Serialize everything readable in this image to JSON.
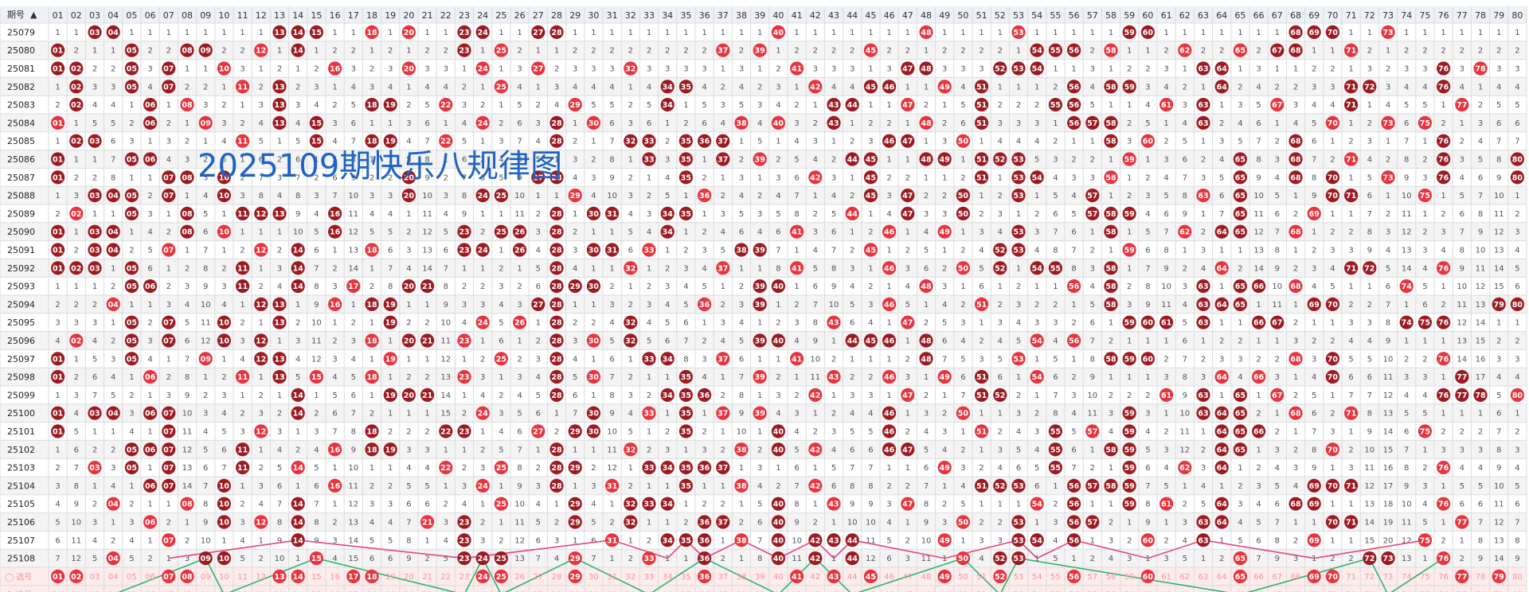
{
  "chart_data": {
    "type": "table",
    "title": "2025109期快乐八规律图",
    "header_label": "期号",
    "sort_arrow": "▲",
    "select_row_label": "选号",
    "select_prefix": "◯",
    "columns": [
      "01",
      "02",
      "03",
      "04",
      "05",
      "06",
      "07",
      "08",
      "09",
      "10",
      "11",
      "12",
      "13",
      "14",
      "15",
      "16",
      "17",
      "18",
      "19",
      "20",
      "21",
      "22",
      "23",
      "24",
      "25",
      "26",
      "27",
      "28",
      "29",
      "30",
      "31",
      "32",
      "33",
      "34",
      "35",
      "36",
      "37",
      "38",
      "39",
      "40",
      "41",
      "42",
      "43",
      "44",
      "45",
      "46",
      "47",
      "48",
      "49",
      "50",
      "51",
      "52",
      "53",
      "54",
      "55",
      "56",
      "57",
      "58",
      "59",
      "60",
      "61",
      "62",
      "63",
      "64",
      "65",
      "66",
      "67",
      "68",
      "69",
      "70",
      "71",
      "72",
      "73",
      "74",
      "75",
      "76",
      "77",
      "78",
      "79",
      "80"
    ],
    "periods": [
      "25079",
      "25080",
      "25081",
      "25082",
      "25083",
      "25084",
      "25085",
      "25086",
      "25087",
      "25088",
      "25089",
      "25090",
      "25091",
      "25092",
      "25093",
      "25094",
      "25095",
      "25096",
      "25097",
      "25098",
      "25099",
      "25100",
      "25101",
      "25102",
      "25103",
      "25104",
      "25105",
      "25106",
      "25107",
      "25108"
    ],
    "draws": [
      [
        3,
        4,
        13,
        14,
        15,
        18,
        20,
        23,
        24,
        27,
        28,
        40,
        48,
        53,
        59,
        60,
        68,
        69,
        70,
        73
      ],
      [
        1,
        5,
        8,
        9,
        12,
        14,
        23,
        25,
        37,
        39,
        45,
        54,
        55,
        56,
        58,
        62,
        65,
        67,
        68,
        71
      ],
      [
        1,
        2,
        5,
        7,
        10,
        16,
        20,
        24,
        27,
        32,
        41,
        47,
        48,
        52,
        53,
        54,
        63,
        64,
        76,
        78
      ],
      [
        2,
        5,
        7,
        11,
        13,
        25,
        34,
        35,
        42,
        45,
        46,
        49,
        51,
        56,
        58,
        59,
        64,
        71,
        72,
        76
      ],
      [
        2,
        6,
        8,
        13,
        18,
        19,
        22,
        29,
        34,
        43,
        44,
        47,
        51,
        55,
        56,
        61,
        63,
        67,
        71,
        77
      ],
      [
        1,
        6,
        9,
        13,
        15,
        24,
        28,
        30,
        38,
        40,
        43,
        48,
        51,
        56,
        57,
        58,
        63,
        70,
        73,
        75
      ],
      [
        2,
        3,
        11,
        15,
        18,
        19,
        22,
        28,
        32,
        33,
        35,
        36,
        37,
        46,
        47,
        50,
        58,
        60,
        68,
        76
      ],
      [
        1,
        5,
        6,
        33,
        35,
        37,
        39,
        44,
        45,
        48,
        49,
        51,
        52,
        53,
        59,
        65,
        68,
        71,
        76,
        80
      ],
      [
        1,
        7,
        8,
        10,
        20,
        27,
        28,
        35,
        42,
        45,
        51,
        53,
        54,
        58,
        65,
        68,
        70,
        73,
        76,
        80
      ],
      [
        3,
        4,
        5,
        7,
        10,
        20,
        24,
        25,
        29,
        36,
        45,
        47,
        50,
        53,
        57,
        63,
        65,
        70,
        71,
        75
      ],
      [
        2,
        5,
        8,
        11,
        12,
        13,
        16,
        28,
        30,
        31,
        34,
        35,
        44,
        47,
        50,
        57,
        58,
        59,
        65,
        69
      ],
      [
        1,
        3,
        4,
        8,
        10,
        16,
        23,
        25,
        26,
        28,
        34,
        41,
        46,
        49,
        53,
        58,
        62,
        64,
        65,
        68
      ],
      [
        1,
        3,
        4,
        7,
        12,
        14,
        18,
        23,
        24,
        26,
        28,
        30,
        31,
        33,
        38,
        39,
        45,
        52,
        53,
        59
      ],
      [
        1,
        2,
        3,
        5,
        11,
        14,
        28,
        32,
        37,
        41,
        46,
        50,
        52,
        54,
        55,
        58,
        64,
        71,
        72,
        76
      ],
      [
        5,
        6,
        11,
        14,
        17,
        20,
        21,
        28,
        29,
        30,
        39,
        40,
        48,
        56,
        58,
        63,
        65,
        66,
        68,
        74
      ],
      [
        4,
        12,
        13,
        16,
        18,
        19,
        27,
        28,
        36,
        39,
        46,
        51,
        58,
        63,
        64,
        65,
        69,
        70,
        79,
        80
      ],
      [
        5,
        7,
        10,
        13,
        19,
        24,
        26,
        28,
        32,
        43,
        47,
        59,
        60,
        61,
        63,
        66,
        67,
        74,
        75,
        76
      ],
      [
        2,
        5,
        7,
        10,
        12,
        18,
        20,
        21,
        23,
        28,
        30,
        32,
        39,
        40,
        44,
        45,
        46,
        48,
        54,
        56
      ],
      [
        1,
        5,
        9,
        12,
        13,
        19,
        25,
        28,
        33,
        34,
        37,
        41,
        48,
        53,
        58,
        59,
        60,
        68,
        70,
        76
      ],
      [
        1,
        6,
        11,
        13,
        15,
        18,
        23,
        28,
        30,
        35,
        39,
        43,
        46,
        49,
        51,
        54,
        64,
        66,
        70,
        77
      ],
      [
        14,
        19,
        20,
        21,
        28,
        34,
        35,
        36,
        42,
        47,
        51,
        52,
        61,
        63,
        65,
        67,
        76,
        77,
        78,
        80
      ],
      [
        1,
        3,
        4,
        6,
        7,
        14,
        24,
        30,
        33,
        35,
        37,
        39,
        46,
        50,
        59,
        63,
        64,
        65,
        68,
        71
      ],
      [
        1,
        7,
        12,
        18,
        22,
        23,
        27,
        29,
        30,
        35,
        40,
        46,
        51,
        55,
        57,
        59,
        64,
        65,
        66,
        75
      ],
      [
        5,
        6,
        7,
        11,
        16,
        18,
        19,
        28,
        32,
        38,
        40,
        42,
        46,
        47,
        55,
        58,
        59,
        64,
        65,
        70
      ],
      [
        3,
        5,
        7,
        11,
        14,
        22,
        25,
        28,
        29,
        33,
        34,
        35,
        36,
        37,
        49,
        55,
        59,
        62,
        64,
        76
      ],
      [
        6,
        7,
        10,
        16,
        24,
        28,
        31,
        35,
        38,
        42,
        51,
        52,
        53,
        56,
        57,
        58,
        59,
        69,
        70,
        71
      ],
      [
        4,
        8,
        10,
        14,
        25,
        29,
        32,
        33,
        34,
        40,
        43,
        47,
        54,
        56,
        59,
        61,
        64,
        68,
        69,
        76
      ],
      [
        6,
        10,
        12,
        14,
        21,
        23,
        29,
        32,
        36,
        37,
        40,
        50,
        53,
        56,
        57,
        63,
        64,
        70,
        71,
        77
      ],
      [
        7,
        14,
        23,
        31,
        34,
        35,
        36,
        38,
        40,
        42,
        43,
        44,
        49,
        53,
        54,
        56,
        60,
        63,
        69,
        75
      ],
      [
        4,
        9,
        10,
        15,
        23,
        24,
        25,
        29,
        33,
        36,
        40,
        42,
        44,
        50,
        52,
        53,
        65,
        72,
        73,
        76
      ]
    ],
    "selected": [
      1,
      2,
      7,
      8,
      13,
      14,
      17,
      18,
      24,
      25,
      29,
      36,
      41,
      43,
      45,
      49,
      52,
      56,
      60,
      65,
      69,
      70,
      77,
      79
    ]
  }
}
